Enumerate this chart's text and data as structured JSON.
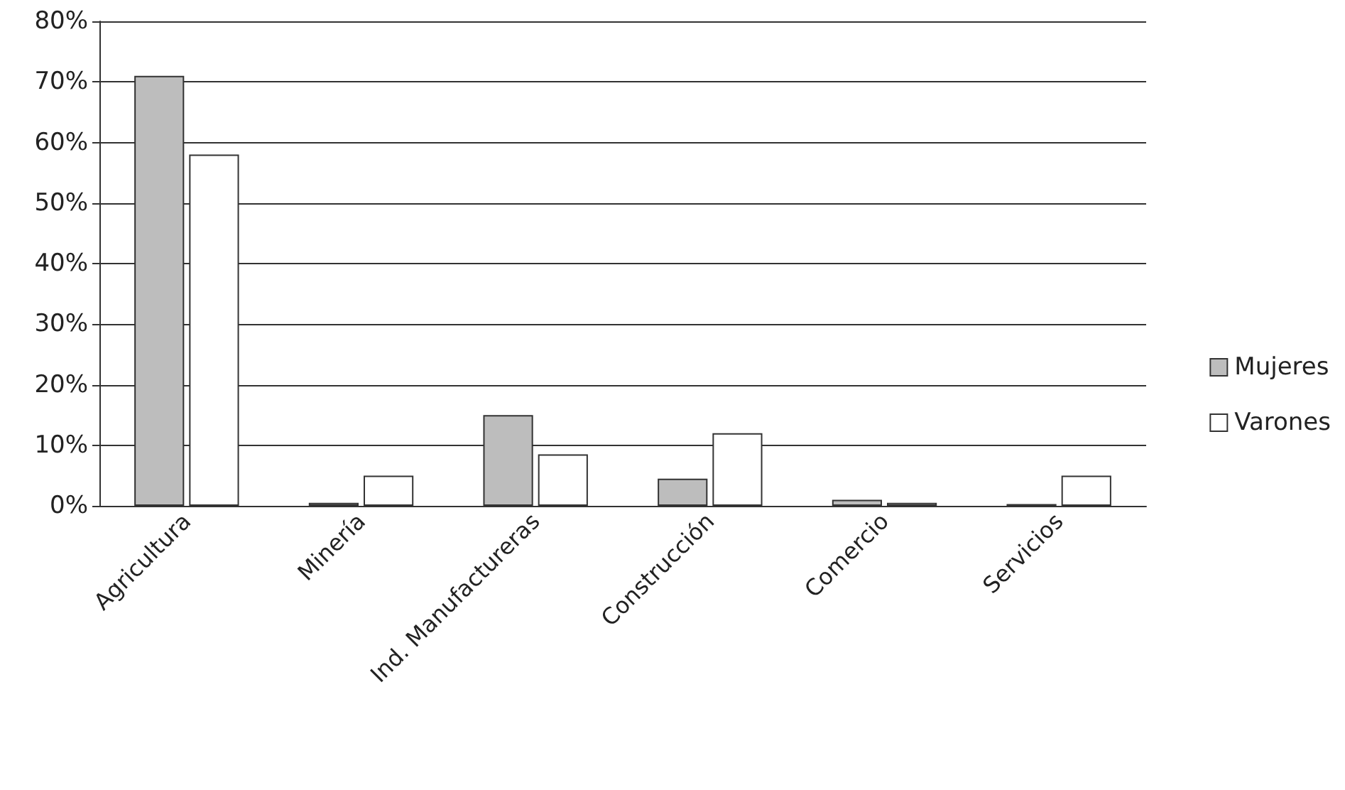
{
  "chart_data": {
    "type": "bar",
    "categories": [
      "Agricultura",
      "Minería",
      "Ind. Manufactureras",
      "Construcción",
      "Comercio",
      "Servicios"
    ],
    "series": [
      {
        "name": "Mujeres",
        "color": "#bdbdbd",
        "values": [
          71,
          0.5,
          15,
          4.5,
          1,
          0.3
        ]
      },
      {
        "name": "Varones",
        "color": "#ffffff",
        "values": [
          58,
          5,
          8.5,
          12,
          0.5,
          5
        ]
      }
    ],
    "ylim": [
      0,
      80
    ],
    "yticks": [
      {
        "value": 0,
        "label": "0%"
      },
      {
        "value": 10,
        "label": "10%"
      },
      {
        "value": 20,
        "label": "20%"
      },
      {
        "value": 30,
        "label": "30%"
      },
      {
        "value": 40,
        "label": "40%"
      },
      {
        "value": 50,
        "label": "50%"
      },
      {
        "value": 60,
        "label": "60%"
      },
      {
        "value": 70,
        "label": "70%"
      },
      {
        "value": 80,
        "label": "80%"
      }
    ],
    "grid": "y",
    "legend": "right"
  }
}
